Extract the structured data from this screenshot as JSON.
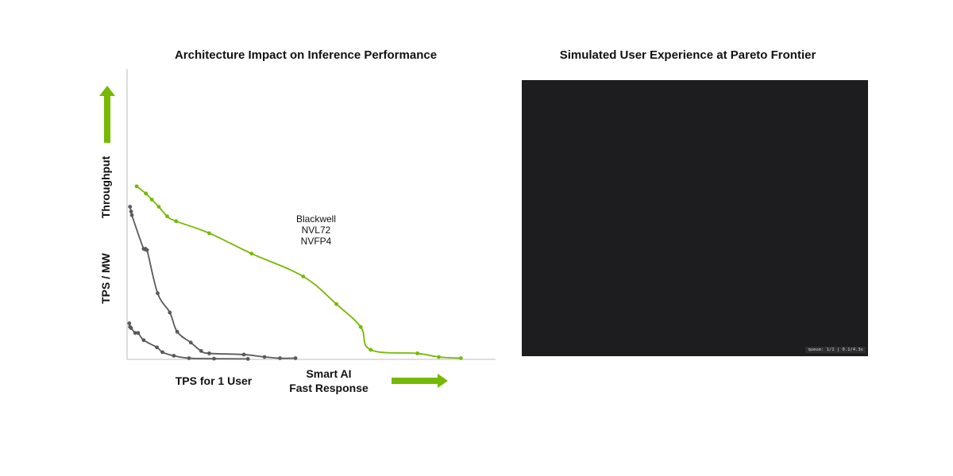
{
  "chart_data": {
    "type": "line",
    "title": "Architecture Impact on Inference Performance",
    "ylabel_top": "Throughput",
    "ylabel_bottom": "TPS / MW",
    "xlabel_left": "TPS for 1 User",
    "xlabel_right_line1": "Smart AI",
    "xlabel_right_line2": "Fast Response",
    "grid": false,
    "xlim": [
      0,
      100
    ],
    "ylim": [
      0,
      100
    ],
    "colors": {
      "accent": "#76b900",
      "secondary": "#5a5a5a",
      "axis": "#bdbdbd"
    },
    "series": [
      {
        "name": "Blackwell NVL72 NVFP4",
        "label_lines": [
          "Blackwell",
          "NVL72",
          "NVFP4"
        ],
        "color": "#76b900",
        "points": [
          [
            2.6,
            72
          ],
          [
            5.1,
            69
          ],
          [
            6.7,
            66.5
          ],
          [
            8.6,
            63.5
          ],
          [
            10.9,
            59.5
          ],
          [
            13.3,
            57.5
          ],
          [
            22.3,
            52.5
          ],
          [
            33.8,
            44
          ],
          [
            47.8,
            34.5
          ],
          [
            56.8,
            23
          ],
          [
            63.4,
            13.5
          ],
          [
            66.1,
            4
          ],
          [
            78.8,
            2.5
          ],
          [
            84.6,
            1
          ],
          [
            90.6,
            0.5
          ]
        ],
        "smooth": true
      },
      {
        "name": "",
        "color": "#5a5a5a",
        "points": [
          [
            0.8,
            63.5
          ],
          [
            1.1,
            61.5
          ],
          [
            1.3,
            60
          ],
          [
            4.5,
            46
          ],
          [
            5.4,
            45.5
          ],
          [
            8.3,
            27.5
          ],
          [
            11.6,
            19.5
          ],
          [
            13.6,
            11.5
          ],
          [
            17.3,
            7
          ],
          [
            20.1,
            3.5
          ],
          [
            22.3,
            2.5
          ],
          [
            31.7,
            2
          ],
          [
            37.3,
            1
          ],
          [
            41.5,
            0.5
          ],
          [
            45.7,
            0.5
          ]
        ],
        "smooth": true
      },
      {
        "name": "",
        "color": "#5a5a5a",
        "points": [
          [
            0.6,
            15
          ],
          [
            0.8,
            13.5
          ],
          [
            1.1,
            13
          ],
          [
            2.2,
            11
          ],
          [
            3.0,
            11
          ],
          [
            4.5,
            8
          ],
          [
            8.1,
            5
          ],
          [
            9.6,
            3
          ],
          [
            12.7,
            1.5
          ],
          [
            16.8,
            0.5
          ],
          [
            23.6,
            0.3
          ],
          [
            32.8,
            0.2
          ]
        ],
        "smooth": true
      }
    ]
  },
  "right_panel": {
    "title": "Simulated User Experience at Pareto Frontier",
    "queue_status": "queue: 1/1 | 0.1/4.3s",
    "background": "#1d1d1f"
  }
}
